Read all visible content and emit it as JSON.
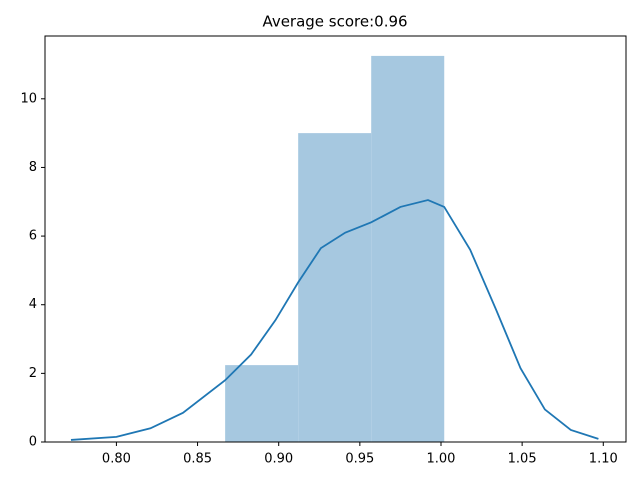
{
  "chart_data": {
    "type": "histogram",
    "title": "Average score:0.96",
    "bins": [
      0.867,
      0.912,
      0.957,
      1.002
    ],
    "values": [
      2.24,
      9.0,
      11.25
    ],
    "color": "#a6c8e0",
    "kde": {
      "color": "#1f77b4",
      "x": [
        0.772,
        0.8,
        0.821,
        0.841,
        0.867,
        0.883,
        0.898,
        0.912,
        0.926,
        0.941,
        0.957,
        0.975,
        0.992,
        1.002,
        1.018,
        1.034,
        1.049,
        1.064,
        1.08,
        1.097
      ],
      "y": [
        0.06,
        0.15,
        0.4,
        0.85,
        1.8,
        2.55,
        3.55,
        4.65,
        5.65,
        6.1,
        6.4,
        6.85,
        7.05,
        6.85,
        5.6,
        3.85,
        2.15,
        0.95,
        0.35,
        0.09
      ]
    },
    "xlim": [
      0.756,
      1.114
    ],
    "ylim": [
      0,
      11.83
    ],
    "xticks": [
      {
        "value": 0.8,
        "label": "0.80"
      },
      {
        "value": 0.85,
        "label": "0.85"
      },
      {
        "value": 0.9,
        "label": "0.90"
      },
      {
        "value": 0.95,
        "label": "0.95"
      },
      {
        "value": 1.0,
        "label": "1.00"
      },
      {
        "value": 1.05,
        "label": "1.05"
      },
      {
        "value": 1.1,
        "label": "1.10"
      }
    ],
    "yticks": [
      0,
      2,
      4,
      6,
      8,
      10
    ]
  }
}
